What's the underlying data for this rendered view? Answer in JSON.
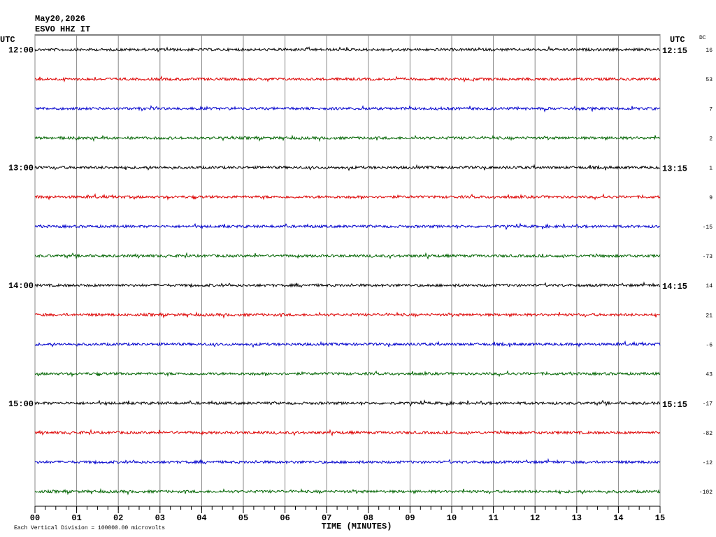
{
  "chart_data": {
    "type": "helicorder",
    "title": "May20,2026",
    "subtitle": "ESVO HHZ IT",
    "left_header": "UTC",
    "right_header": "UTC",
    "dc_header": "DC",
    "xlabel": "TIME (MINUTES)",
    "note": "Each Vertical Division = 100000.00 microvolts",
    "xlim": [
      0,
      15
    ],
    "xticks": [
      {
        "value": 0,
        "label": "00"
      },
      {
        "value": 1,
        "label": "01"
      },
      {
        "value": 2,
        "label": "02"
      },
      {
        "value": 3,
        "label": "03"
      },
      {
        "value": 4,
        "label": "04"
      },
      {
        "value": 5,
        "label": "05"
      },
      {
        "value": 6,
        "label": "06"
      },
      {
        "value": 7,
        "label": "07"
      },
      {
        "value": 8,
        "label": "08"
      },
      {
        "value": 9,
        "label": "09"
      },
      {
        "value": 10,
        "label": "10"
      },
      {
        "value": 11,
        "label": "11"
      },
      {
        "value": 12,
        "label": "12"
      },
      {
        "value": 13,
        "label": "13"
      },
      {
        "value": 14,
        "label": "14"
      },
      {
        "value": 15,
        "label": "15"
      }
    ],
    "rows": [
      {
        "left": "12:00",
        "right": "12:15",
        "dc": 16,
        "color": "#000000"
      },
      {
        "left": null,
        "right": null,
        "dc": 53,
        "color": "#dd0000"
      },
      {
        "left": null,
        "right": null,
        "dc": 7,
        "color": "#0000cc"
      },
      {
        "left": null,
        "right": null,
        "dc": 2,
        "color": "#006400"
      },
      {
        "left": "13:00",
        "right": "13:15",
        "dc": 1,
        "color": "#000000"
      },
      {
        "left": null,
        "right": null,
        "dc": 9,
        "color": "#dd0000"
      },
      {
        "left": null,
        "right": null,
        "dc": -15,
        "color": "#0000cc"
      },
      {
        "left": null,
        "right": null,
        "dc": -73,
        "color": "#006400"
      },
      {
        "left": "14:00",
        "right": "14:15",
        "dc": 14,
        "color": "#000000"
      },
      {
        "left": null,
        "right": null,
        "dc": 21,
        "color": "#dd0000"
      },
      {
        "left": null,
        "right": null,
        "dc": -6,
        "color": "#0000cc"
      },
      {
        "left": null,
        "right": null,
        "dc": 43,
        "color": "#006400"
      },
      {
        "left": "15:00",
        "right": "15:15",
        "dc": -17,
        "color": "#000000"
      },
      {
        "left": null,
        "right": null,
        "dc": -82,
        "color": "#dd0000"
      },
      {
        "left": null,
        "right": null,
        "dc": -12,
        "color": "#0000cc"
      },
      {
        "left": null,
        "right": null,
        "dc": -102,
        "color": "#006400"
      }
    ]
  }
}
